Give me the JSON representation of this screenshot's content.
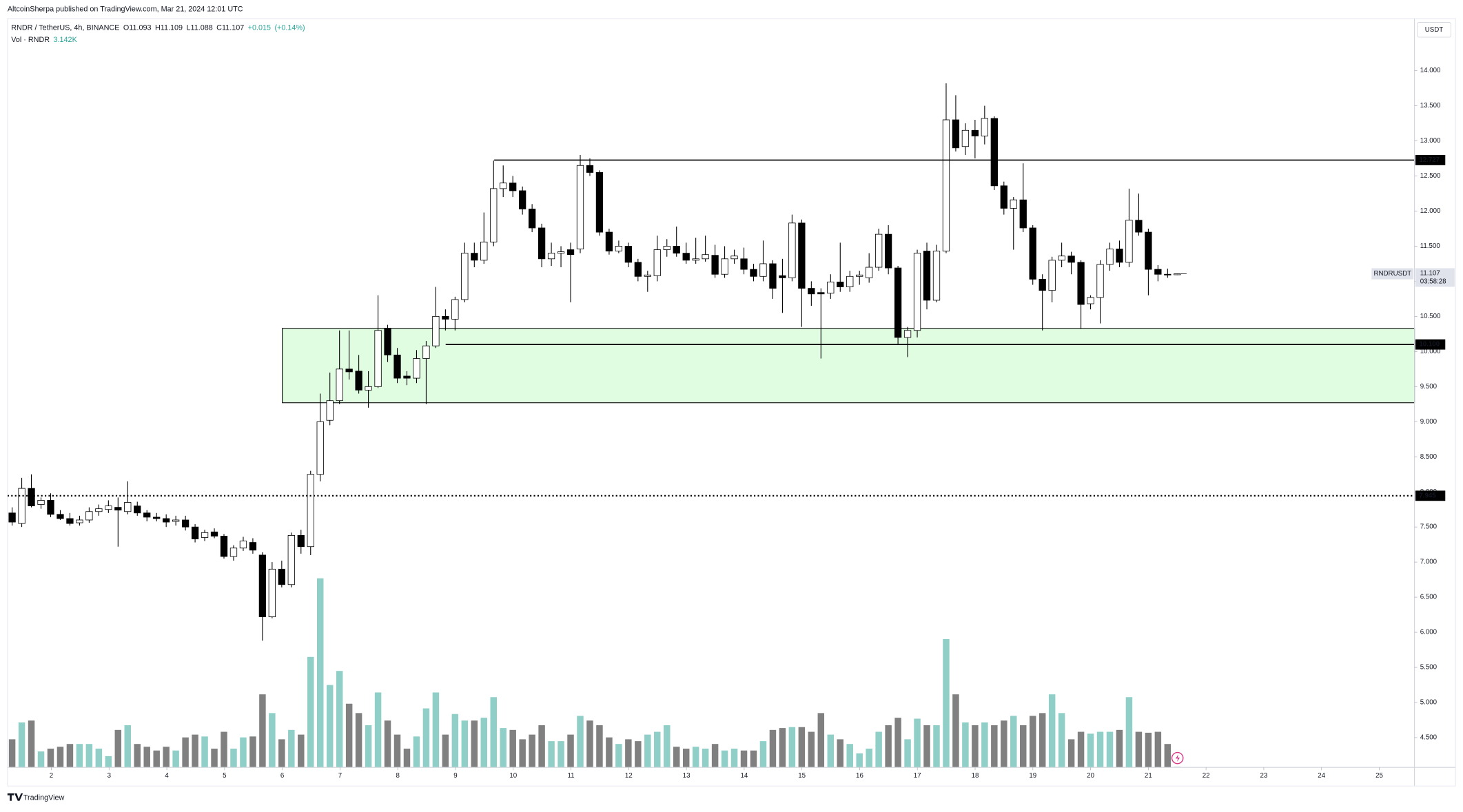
{
  "header": {
    "publisher": "AltcoinSherpa published on TradingView.com, Mar 21, 2024 12:01 UTC"
  },
  "footer": {
    "brand": "TradingView"
  },
  "chart_data": {
    "type": "candlestick",
    "symbol_title": "RNDR / TetherUS, 4h, BINANCE",
    "legend_values": [
      {
        "value": 11.093,
        "label": "O11.093"
      },
      {
        "value": 11.109,
        "label": "H11.109"
      },
      {
        "value": 11.088,
        "label": "L11.088"
      },
      {
        "value": 11.107,
        "label": "C11.107"
      },
      {
        "value": 0.015,
        "label": "+0.015"
      },
      {
        "value": 0.14,
        "label": "(+0.14%)"
      }
    ],
    "volume_name": "Vol · RNDR",
    "volume_current_label": "3.142K",
    "currency": "USDT",
    "up_color": "#ffffff",
    "down_color": "#000000",
    "vol_up_color": "#8fcfc7",
    "vol_down_color": "#808080",
    "grid": false,
    "ylim": [
      4.076,
      14.742
    ],
    "yticks": [
      {
        "value": 4.5,
        "label": "4.500"
      },
      {
        "value": 5,
        "label": "5.000"
      },
      {
        "value": 5.5,
        "label": "5.500"
      },
      {
        "value": 6,
        "label": "6.000"
      },
      {
        "value": 6.5,
        "label": "6.500"
      },
      {
        "value": 7,
        "label": "7.000"
      },
      {
        "value": 7.5,
        "label": "7.500"
      },
      {
        "value": 8,
        "label": "8.000"
      },
      {
        "value": 8.5,
        "label": "8.500"
      },
      {
        "value": 9,
        "label": "9.000"
      },
      {
        "value": 9.5,
        "label": "9.500"
      },
      {
        "value": 10,
        "label": "10.000"
      },
      {
        "value": 10.5,
        "label": "10.500"
      },
      {
        "value": 11,
        "label": "11.000"
      },
      {
        "value": 11.5,
        "label": "11.500"
      },
      {
        "value": 12,
        "label": "12.000"
      },
      {
        "value": 12.5,
        "label": "12.500"
      },
      {
        "value": 13,
        "label": "13.000"
      },
      {
        "value": 13.5,
        "label": "13.500"
      },
      {
        "value": 14,
        "label": "14.000"
      }
    ],
    "xlim": [
      1.24,
      25.61
    ],
    "xticks": [
      2,
      3,
      4,
      5,
      6,
      7,
      8,
      9,
      10,
      11,
      12,
      13,
      14,
      15,
      16,
      17,
      18,
      19,
      20,
      21,
      22,
      23,
      24,
      25
    ],
    "vol_lim": [
      0,
      1000
    ],
    "candles": [
      [
        7.7,
        7.78,
        7.52,
        7.57
      ],
      [
        7.55,
        8.2,
        7.5,
        8.05
      ],
      [
        8.05,
        8.25,
        7.78,
        7.8
      ],
      [
        7.82,
        7.92,
        7.76,
        7.88
      ],
      [
        7.88,
        7.98,
        7.64,
        7.68
      ],
      [
        7.68,
        7.74,
        7.6,
        7.62
      ],
      [
        7.62,
        7.7,
        7.52,
        7.55
      ],
      [
        7.56,
        7.66,
        7.52,
        7.6
      ],
      [
        7.6,
        7.78,
        7.56,
        7.72
      ],
      [
        7.72,
        7.82,
        7.66,
        7.76
      ],
      [
        7.75,
        7.88,
        7.7,
        7.8
      ],
      [
        7.78,
        7.92,
        7.22,
        7.74
      ],
      [
        7.72,
        8.15,
        7.68,
        7.85
      ],
      [
        7.8,
        7.86,
        7.66,
        7.7
      ],
      [
        7.7,
        7.74,
        7.58,
        7.64
      ],
      [
        7.64,
        7.7,
        7.58,
        7.62
      ],
      [
        7.62,
        7.68,
        7.5,
        7.57
      ],
      [
        7.58,
        7.66,
        7.52,
        7.6
      ],
      [
        7.6,
        7.66,
        7.45,
        7.5
      ],
      [
        7.5,
        7.54,
        7.28,
        7.33
      ],
      [
        7.35,
        7.46,
        7.3,
        7.42
      ],
      [
        7.43,
        7.48,
        7.34,
        7.37
      ],
      [
        7.37,
        7.4,
        7.05,
        7.08
      ],
      [
        7.08,
        7.24,
        7.02,
        7.2
      ],
      [
        7.2,
        7.36,
        7.16,
        7.3
      ],
      [
        7.28,
        7.34,
        7.12,
        7.17
      ],
      [
        7.1,
        7.14,
        5.88,
        6.22
      ],
      [
        6.22,
        7.0,
        6.2,
        6.9
      ],
      [
        6.9,
        7.02,
        6.64,
        6.68
      ],
      [
        6.68,
        7.42,
        6.64,
        7.38
      ],
      [
        7.38,
        7.46,
        7.12,
        7.22
      ],
      [
        7.22,
        8.3,
        7.1,
        8.25
      ],
      [
        8.25,
        9.4,
        8.15,
        9.0
      ],
      [
        9.02,
        9.7,
        8.95,
        9.3
      ],
      [
        9.3,
        10.3,
        9.25,
        9.75
      ],
      [
        9.75,
        10.3,
        9.6,
        9.71
      ],
      [
        9.72,
        9.95,
        9.4,
        9.45
      ],
      [
        9.45,
        9.72,
        9.2,
        9.5
      ],
      [
        9.5,
        10.8,
        9.48,
        10.3
      ],
      [
        10.33,
        10.38,
        9.85,
        9.95
      ],
      [
        9.95,
        10.05,
        9.55,
        9.62
      ],
      [
        9.65,
        9.72,
        9.52,
        9.62
      ],
      [
        9.62,
        10.02,
        9.55,
        9.9
      ],
      [
        9.9,
        10.15,
        9.25,
        10.08
      ],
      [
        10.08,
        10.92,
        10.05,
        10.5
      ],
      [
        10.5,
        10.6,
        10.3,
        10.46
      ],
      [
        10.46,
        10.78,
        10.3,
        10.74
      ],
      [
        10.74,
        11.55,
        10.7,
        11.4
      ],
      [
        11.4,
        11.55,
        11.2,
        11.3
      ],
      [
        11.3,
        11.98,
        11.25,
        11.56
      ],
      [
        11.56,
        12.72,
        11.5,
        12.32
      ],
      [
        12.32,
        12.65,
        12.2,
        12.4
      ],
      [
        12.4,
        12.5,
        12.2,
        12.29
      ],
      [
        12.29,
        12.35,
        11.95,
        12.03
      ],
      [
        12.03,
        12.1,
        11.7,
        11.76
      ],
      [
        11.76,
        11.82,
        11.2,
        11.32
      ],
      [
        11.32,
        11.55,
        11.22,
        11.4
      ],
      [
        11.4,
        11.5,
        11.2,
        11.42
      ],
      [
        11.45,
        11.55,
        10.7,
        11.38
      ],
      [
        11.46,
        12.8,
        11.4,
        12.65
      ],
      [
        12.65,
        12.75,
        12.5,
        12.55
      ],
      [
        12.55,
        12.58,
        11.65,
        11.7
      ],
      [
        11.7,
        11.75,
        11.38,
        11.43
      ],
      [
        11.43,
        11.58,
        11.4,
        11.5
      ],
      [
        11.5,
        11.55,
        11.2,
        11.27
      ],
      [
        11.27,
        11.32,
        11.0,
        11.07
      ],
      [
        11.07,
        11.15,
        10.85,
        11.09
      ],
      [
        11.08,
        11.65,
        11.0,
        11.45
      ],
      [
        11.45,
        11.6,
        11.35,
        11.5
      ],
      [
        11.5,
        11.78,
        11.35,
        11.4
      ],
      [
        11.4,
        11.55,
        11.25,
        11.3
      ],
      [
        11.3,
        11.62,
        11.25,
        11.32
      ],
      [
        11.32,
        11.65,
        11.28,
        11.38
      ],
      [
        11.37,
        11.52,
        11.05,
        11.1
      ],
      [
        11.1,
        11.5,
        11.05,
        11.32
      ],
      [
        11.32,
        11.45,
        11.25,
        11.36
      ],
      [
        11.32,
        11.48,
        11.1,
        11.17
      ],
      [
        11.17,
        11.25,
        11.0,
        11.07
      ],
      [
        11.07,
        11.58,
        11.0,
        11.25
      ],
      [
        11.25,
        11.3,
        10.75,
        10.9
      ],
      [
        11.08,
        11.32,
        10.55,
        11.05
      ],
      [
        11.05,
        11.95,
        11.0,
        11.83
      ],
      [
        11.83,
        11.88,
        10.35,
        10.9
      ],
      [
        10.9,
        11.0,
        10.65,
        10.82
      ],
      [
        10.84,
        10.9,
        9.9,
        10.82
      ],
      [
        10.83,
        11.1,
        10.75,
        10.99
      ],
      [
        10.99,
        11.55,
        10.85,
        10.92
      ],
      [
        10.92,
        11.15,
        10.85,
        11.07
      ],
      [
        11.07,
        11.15,
        10.95,
        11.09
      ],
      [
        11.05,
        11.4,
        10.98,
        11.2
      ],
      [
        11.2,
        11.75,
        11.15,
        11.67
      ],
      [
        11.67,
        11.8,
        11.1,
        11.19
      ],
      [
        11.19,
        11.22,
        10.1,
        10.2
      ],
      [
        10.2,
        10.35,
        9.92,
        10.3
      ],
      [
        10.3,
        11.45,
        10.2,
        11.4
      ],
      [
        11.43,
        11.55,
        10.6,
        10.73
      ],
      [
        10.73,
        11.52,
        10.7,
        11.43
      ],
      [
        11.43,
        13.82,
        11.4,
        13.3
      ],
      [
        13.3,
        13.65,
        12.85,
        12.9
      ],
      [
        12.92,
        13.25,
        12.8,
        13.15
      ],
      [
        13.15,
        13.3,
        12.75,
        13.07
      ],
      [
        13.07,
        13.5,
        12.95,
        13.32
      ],
      [
        13.32,
        13.35,
        12.3,
        12.36
      ],
      [
        12.36,
        12.42,
        11.95,
        12.04
      ],
      [
        12.04,
        12.2,
        11.45,
        12.16
      ],
      [
        12.16,
        12.68,
        11.7,
        11.76
      ],
      [
        11.76,
        11.8,
        10.95,
        11.03
      ],
      [
        11.03,
        11.1,
        10.3,
        10.87
      ],
      [
        10.87,
        11.35,
        10.7,
        11.3
      ],
      [
        11.3,
        11.55,
        11.2,
        11.36
      ],
      [
        11.36,
        11.42,
        11.1,
        11.27
      ],
      [
        11.27,
        11.3,
        10.32,
        10.67
      ],
      [
        10.68,
        10.8,
        10.6,
        10.77
      ],
      [
        10.77,
        11.3,
        10.4,
        11.24
      ],
      [
        11.24,
        11.55,
        11.15,
        11.46
      ],
      [
        11.46,
        11.58,
        11.2,
        11.27
      ],
      [
        11.27,
        12.32,
        11.2,
        11.87
      ],
      [
        11.87,
        12.25,
        11.65,
        11.7
      ],
      [
        11.7,
        11.75,
        10.8,
        11.17
      ],
      [
        11.17,
        11.23,
        11.0,
        11.1
      ],
      [
        11.1,
        11.18,
        11.05,
        11.09
      ],
      [
        11.093,
        11.109,
        11.088,
        11.107
      ]
    ],
    "volume": [
      150,
      240,
      250,
      85,
      100,
      110,
      125,
      125,
      125,
      100,
      60,
      200,
      225,
      125,
      110,
      90,
      110,
      90,
      160,
      175,
      165,
      100,
      190,
      100,
      160,
      165,
      390,
      290,
      150,
      200,
      175,
      590,
      1010,
      440,
      515,
      340,
      290,
      225,
      400,
      250,
      175,
      100,
      165,
      315,
      400,
      175,
      285,
      250,
      250,
      265,
      375,
      210,
      200,
      150,
      175,
      225,
      140,
      140,
      175,
      275,
      250,
      225,
      160,
      125,
      150,
      140,
      175,
      190,
      225,
      110,
      100,
      110,
      100,
      125,
      90,
      100,
      90,
      90,
      140,
      200,
      210,
      215,
      215,
      190,
      290,
      175,
      150,
      125,
      75,
      100,
      190,
      225,
      265,
      150,
      260,
      225,
      225,
      685,
      390,
      240,
      225,
      240,
      225,
      250,
      275,
      225,
      275,
      290,
      390,
      290,
      150,
      190,
      180,
      190,
      190,
      200,
      375,
      190,
      185,
      190,
      125,
      3.142
    ],
    "box": {
      "top": 10.33,
      "bottom": 9.27,
      "from": 6.0,
      "color": "#e1fde1"
    },
    "levels": [
      {
        "value": 12.727,
        "label": "12.727",
        "from": 9.67,
        "style": "solid"
      },
      {
        "value": 10.1,
        "label": "10.100",
        "from": 8.83,
        "style": "solid"
      },
      {
        "value": 7.945,
        "label": "7.945",
        "from": 1.24,
        "style": "dotted"
      }
    ],
    "last_price": {
      "value": 11.107,
      "label": "11.107",
      "countdown": "03:58:28",
      "symbol": "RNDRUSDT"
    }
  }
}
